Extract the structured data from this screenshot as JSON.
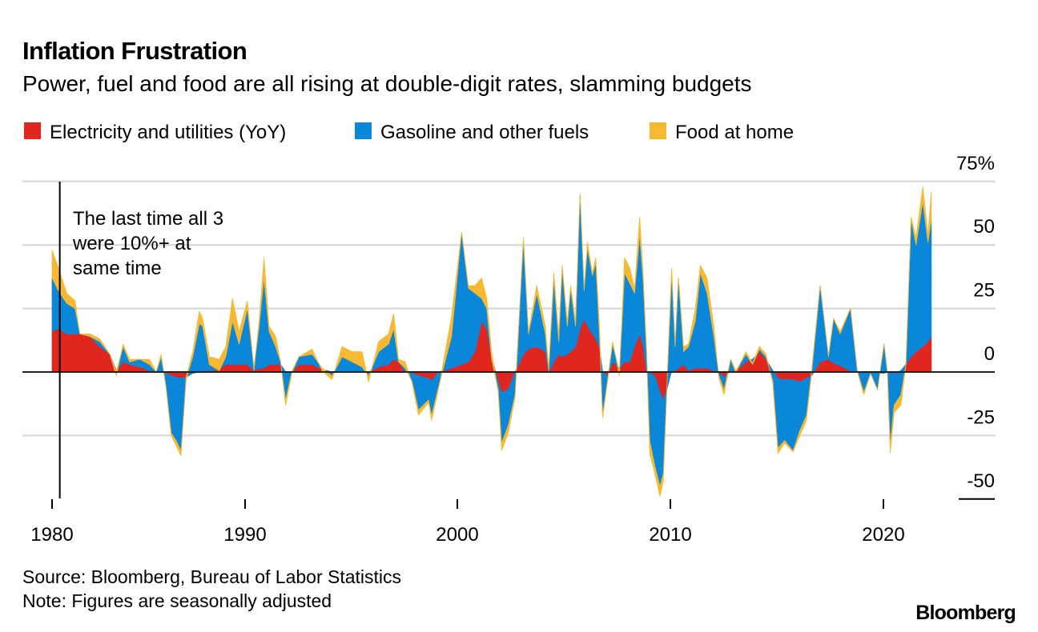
{
  "title": "Inflation Frustration",
  "subtitle": "Power, fuel and food are all rising at double-digit rates, slamming budgets",
  "legend": [
    {
      "label": "Electricity and utilities (YoY)",
      "color": "#e0261f"
    },
    {
      "label": "Gasoline and other fuels",
      "color": "#0a87d8"
    },
    {
      "label": "Food at home",
      "color": "#f8b932"
    }
  ],
  "annotation": {
    "lines": [
      "The last time all 3",
      "were 10%+ at",
      "same time"
    ],
    "year": 1980.4
  },
  "footer": {
    "source": "Source: Bloomberg, Bureau of Labor Statistics",
    "note": "Note: Figures are seasonally adjusted",
    "logo": "Bloomberg"
  },
  "chart_data": {
    "type": "area",
    "stacked": true,
    "title": "Inflation Frustration",
    "xlabel": "",
    "ylabel": "%",
    "xlim": [
      1980,
      2022.3
    ],
    "ylim": [
      -50,
      75
    ],
    "grid": true,
    "legend_position": "top-left",
    "x_ticks": [
      1980,
      1990,
      2000,
      2010,
      2020
    ],
    "x_tick_labels": [
      "1980",
      "1990",
      "2000",
      "2010",
      "2020"
    ],
    "y_ticks": [
      75,
      50,
      25,
      0,
      -25,
      -50
    ],
    "y_tick_labels": [
      "75%",
      "50",
      "25",
      "0",
      "-25",
      "-50"
    ],
    "x": [
      1980.0,
      1980.33,
      1980.76,
      1981.19,
      1981.44,
      1981.96,
      1982.47,
      1982.99,
      1983.33,
      1983.68,
      1984.02,
      1984.54,
      1985.05,
      1985.4,
      1985.65,
      1985.91,
      1986.17,
      1986.43,
      1986.68,
      1986.94,
      1987.29,
      1987.63,
      1987.8,
      1988.15,
      1988.66,
      1989.0,
      1989.35,
      1989.69,
      1990.11,
      1990.42,
      1990.66,
      1990.89,
      1991.13,
      1991.44,
      1991.67,
      1991.91,
      1992.22,
      1992.54,
      1993.16,
      1993.63,
      1994.1,
      1994.57,
      1995.04,
      1995.51,
      1995.82,
      1996.29,
      1996.76,
      1997.0,
      1997.23,
      1997.54,
      1997.86,
      1998.17,
      1998.64,
      1998.79,
      1999.11,
      1999.73,
      2000.2,
      2000.52,
      2000.83,
      2001.14,
      2001.38,
      2001.61,
      2001.92,
      2002.08,
      2002.39,
      2002.71,
      2003.1,
      2003.34,
      2003.73,
      2004.13,
      2004.29,
      2004.53,
      2004.76,
      2004.92,
      2005.16,
      2005.32,
      2005.55,
      2005.76,
      2005.95,
      2006.11,
      2006.34,
      2006.5,
      2006.66,
      2006.82,
      2007.06,
      2007.29,
      2007.61,
      2007.85,
      2008.09,
      2008.32,
      2008.56,
      2008.72,
      2008.88,
      2009.03,
      2009.27,
      2009.51,
      2009.67,
      2009.83,
      2010.06,
      2010.22,
      2010.38,
      2010.62,
      2010.85,
      2011.17,
      2011.41,
      2011.72,
      2012.04,
      2012.28,
      2012.52,
      2012.83,
      2013.07,
      2013.54,
      2013.86,
      2014.18,
      2014.49,
      2014.81,
      2015.05,
      2015.36,
      2015.76,
      2016.08,
      2016.39,
      2016.63,
      2017.03,
      2017.42,
      2017.66,
      2017.97,
      2018.45,
      2018.77,
      2019.08,
      2019.4,
      2019.72,
      2020.03,
      2020.19,
      2020.32,
      2020.5,
      2020.82,
      2021.06,
      2021.3,
      2021.53,
      2021.85,
      2022.09,
      2022.25
    ],
    "series": [
      {
        "name": "Electricity and utilities (YoY)",
        "values": [
          16,
          17,
          15,
          15,
          15,
          14,
          10,
          7,
          0.5,
          4,
          3,
          2,
          0.5,
          0,
          0,
          -0.5,
          -1.5,
          -2,
          -2.5,
          -2,
          -0.5,
          0,
          0.5,
          0.5,
          1,
          3,
          3,
          3,
          3,
          0.5,
          1.5,
          1.5,
          3,
          3,
          3,
          0,
          0,
          3,
          3,
          1,
          0,
          0,
          0,
          0,
          0,
          2,
          3,
          5,
          4,
          0,
          -0.5,
          -1.5,
          -2.5,
          -3.5,
          0,
          1.5,
          3,
          4,
          8,
          20,
          17,
          6,
          -4,
          -8,
          -7,
          0,
          7,
          9,
          10,
          8,
          0,
          4,
          7,
          6,
          7,
          8,
          10,
          17,
          21,
          18,
          15,
          13,
          10,
          0,
          -1.5,
          4,
          1.5,
          4,
          4,
          10,
          15,
          10,
          0.5,
          -0.5,
          -1.5,
          -8,
          -11,
          -7,
          0.5,
          0.5,
          1.5,
          3,
          0.5,
          1.5,
          1.5,
          1.5,
          0.5,
          -0.5,
          -2,
          0.5,
          0.5,
          4,
          5,
          8,
          5,
          0.5,
          -2.5,
          -3,
          -3,
          -4,
          -2.5,
          -1.5,
          4,
          5,
          3.5,
          2.5,
          0.5,
          0,
          0,
          0,
          -0.5,
          -0.5,
          0,
          -0.5,
          -0.5,
          0.5,
          3,
          6,
          8,
          10,
          12,
          14
        ]
      },
      {
        "name": "Gasoline and other fuels",
        "values": [
          21,
          15,
          12,
          10,
          0,
          1,
          3,
          0,
          -0.5,
          6,
          1,
          3,
          2.5,
          0,
          6,
          -5.5,
          -22.5,
          -25,
          -28.5,
          -1,
          6.5,
          19,
          17.5,
          2.5,
          -0.5,
          3,
          17,
          8,
          22,
          1,
          16.5,
          35.5,
          13,
          7,
          1,
          -11,
          0.5,
          3,
          4,
          0.5,
          -1.5,
          6,
          4,
          2,
          -1.5,
          6,
          8,
          12,
          0,
          1.5,
          -3,
          -13.5,
          -8.5,
          -13.5,
          -6,
          12.5,
          52,
          29,
          23,
          9,
          8,
          -1,
          -3,
          -20,
          -14,
          -9,
          45,
          6,
          21,
          7,
          0.5,
          33,
          5,
          35,
          11,
          25,
          8,
          53,
          11,
          31,
          23,
          30,
          6,
          -17,
          -1,
          7,
          -1.5,
          35,
          31,
          21,
          39,
          26,
          7.5,
          -26.5,
          -35.5,
          -37,
          -29,
          0,
          38.5,
          9.5,
          35.5,
          5,
          9.5,
          18.5,
          37.5,
          29.5,
          13.5,
          -1,
          -5,
          4.5,
          0,
          3,
          -2,
          1,
          1,
          -4,
          -27.5,
          -24,
          -28,
          -19,
          -14.5,
          2,
          30,
          1,
          17.5,
          12.5,
          24.5,
          0.5,
          -8,
          -0.5,
          -6.5,
          11.5,
          -0.5,
          -28.5,
          -12.5,
          -9.5,
          0,
          54,
          42,
          57,
          39,
          46
        ]
      },
      {
        "name": "Food at home",
        "values": [
          11,
          9,
          4,
          3,
          0,
          -1,
          -1,
          0,
          -1.5,
          1,
          1,
          0,
          2,
          0,
          1,
          0,
          -1,
          -2,
          -2,
          1,
          2,
          5,
          3,
          3,
          4.5,
          4,
          9,
          5,
          3,
          -1,
          2,
          8,
          2,
          4,
          0,
          -2,
          -0.5,
          0,
          2,
          -1,
          -1.5,
          4,
          4,
          6,
          -2.5,
          4,
          4,
          6,
          1,
          2.5,
          -0.5,
          -2,
          -1,
          -2,
          -1,
          8,
          0,
          1,
          3,
          8,
          4,
          3,
          -1,
          -3,
          -3,
          -1,
          1,
          1,
          3,
          3,
          1,
          2,
          3,
          1,
          2,
          1,
          2,
          0,
          1,
          2,
          1,
          2,
          4,
          -1,
          -1,
          1,
          -1.5,
          6,
          6,
          2,
          7,
          3,
          1,
          -5,
          -3,
          -4,
          -3,
          0,
          2,
          1,
          0,
          2,
          1,
          5,
          3,
          6,
          4,
          -1,
          -2,
          0,
          -1,
          1,
          0.5,
          1,
          1,
          -1,
          -2,
          -1,
          -0.5,
          -2,
          -2,
          -1,
          0,
          0,
          0,
          1,
          0,
          0,
          -1,
          0,
          0,
          0,
          0,
          -3,
          -3,
          -4,
          0,
          1,
          3,
          6,
          3,
          11
        ]
      }
    ]
  }
}
